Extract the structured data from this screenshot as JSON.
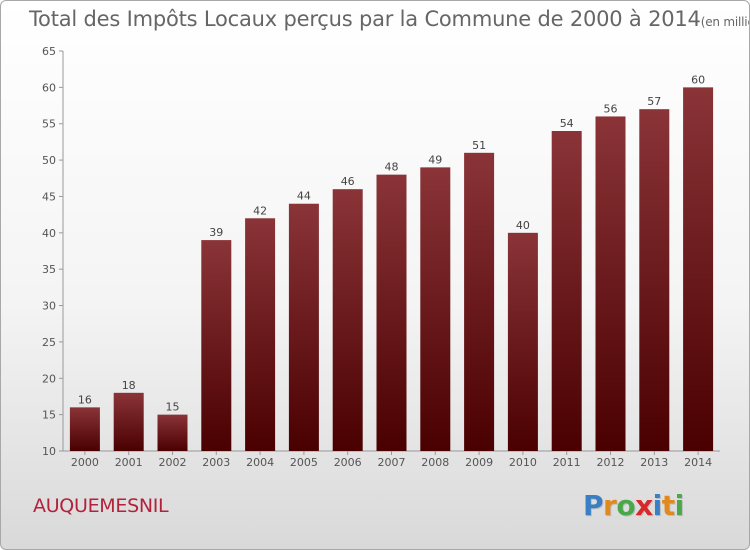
{
  "title": "Total des Impôts Locaux perçus par la Commune de 2000 à 2014",
  "title_unit": "(en milliers d'€)",
  "commune": "AUQUEMESNIL",
  "logo": {
    "letters": [
      "P",
      "r",
      "o",
      "x",
      "i",
      "t",
      "i"
    ],
    "colors": [
      "#3a7fc4",
      "#e08a1e",
      "#4aa84a",
      "#d8282a",
      "#3a7fc4",
      "#e08a1e",
      "#4aa84a"
    ]
  },
  "colors": {
    "bar_top": "#8a3438",
    "bar_bottom": "#4a0000",
    "commune_text": "#b3213a"
  },
  "chart_data": {
    "type": "bar",
    "categories": [
      "2000",
      "2001",
      "2002",
      "2003",
      "2004",
      "2005",
      "2006",
      "2007",
      "2008",
      "2009",
      "2010",
      "2011",
      "2012",
      "2013",
      "2014"
    ],
    "values": [
      16,
      18,
      15,
      39,
      42,
      44,
      46,
      48,
      49,
      51,
      40,
      54,
      56,
      57,
      60
    ],
    "ylim": [
      10,
      65
    ],
    "yticks": [
      10,
      15,
      20,
      25,
      30,
      35,
      40,
      45,
      50,
      55,
      60,
      65
    ],
    "grid": false,
    "legend": "none"
  }
}
